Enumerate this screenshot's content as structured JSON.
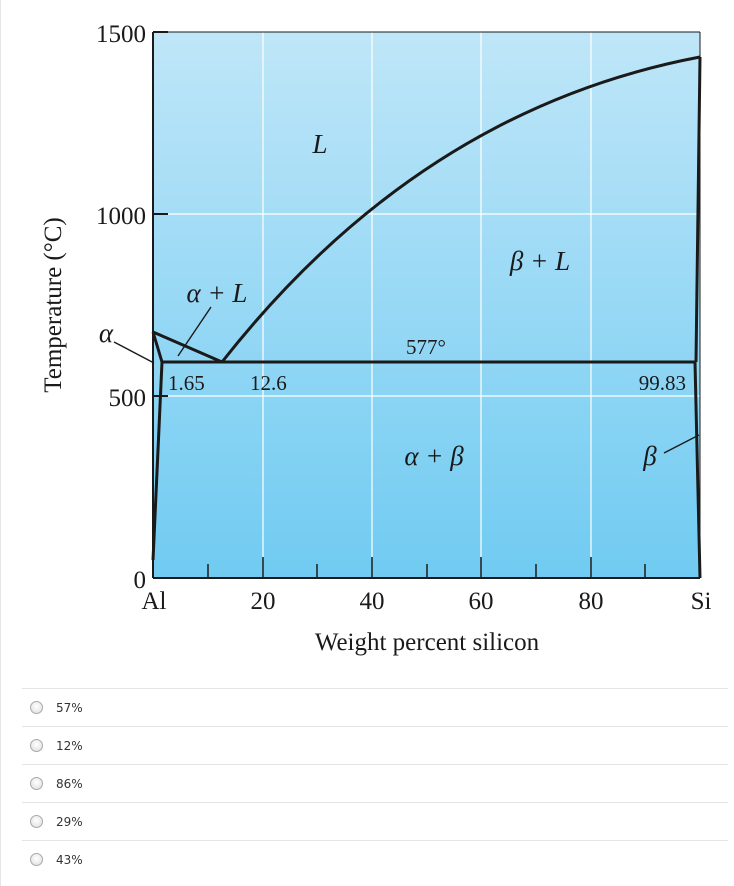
{
  "diagram": {
    "y_axis_title": "Temperature (°C)",
    "x_axis_title": "Weight percent silicon",
    "y_ticks": [
      "0",
      "500",
      "1000",
      "1500"
    ],
    "x_tick_labels": [
      "Al",
      "20",
      "40",
      "60",
      "80",
      "Si"
    ],
    "regions": {
      "liquid": "L",
      "beta_plus_liquid": "β + L",
      "alpha_plus_liquid": "α + L",
      "alpha": "α",
      "alpha_plus_beta": "α + β",
      "beta": "β"
    },
    "values": {
      "eutectic_temperature": "577°",
      "alpha_max_solubility": "1.65",
      "eutectic_composition": "12.6",
      "beta_composition": "99.83"
    },
    "colors": {
      "fill_top": "#bfe6f8",
      "fill_bottom": "#70cbf2",
      "grid": "#ffffff",
      "lines": "#1a1a1a"
    }
  },
  "question": {
    "options": [
      "57%",
      "12%",
      "86%",
      "29%",
      "43%"
    ]
  }
}
